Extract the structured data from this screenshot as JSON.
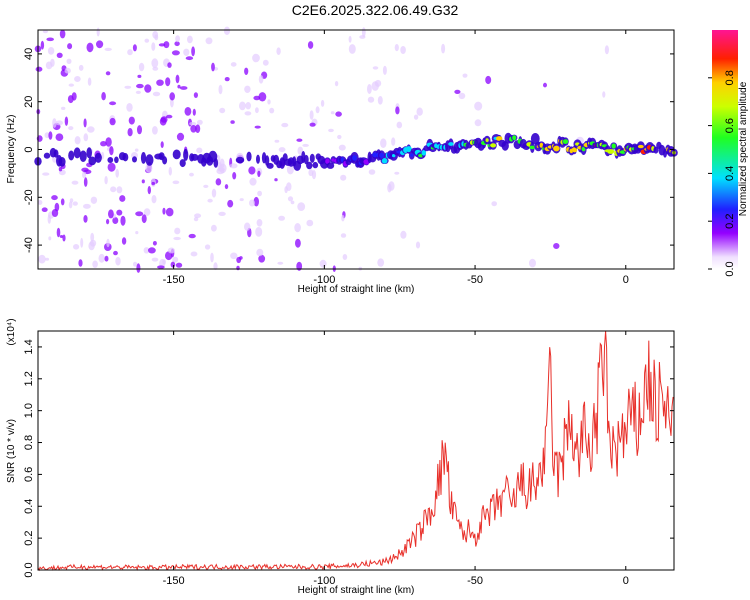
{
  "title": "C2E6.2025.322.06.49.G32",
  "colors": {
    "snr_line": "#e8302a",
    "spectrum_purple": "#8a00ff",
    "spectrum_light": "#e4ccff",
    "ridge_cyan": "#00d8ff",
    "ridge_green": "#33ee33",
    "ridge_red": "#ee1111"
  },
  "chart_data": [
    {
      "type": "heatmap",
      "title": "C2E6.2025.322.06.49.G32",
      "xlabel": "Height of straight line (km)",
      "ylabel": "Frequency (Hz)",
      "xlim": [
        -195,
        16
      ],
      "ylim": [
        -50,
        50
      ],
      "x_ticks": [
        -150,
        -100,
        -50,
        0
      ],
      "y_ticks": [
        -40,
        -20,
        0,
        20,
        40
      ],
      "colorbar": {
        "label": "Normalized spectral amplitude",
        "range": [
          0,
          1
        ],
        "ticks": [
          "0.0",
          "0.2",
          "0.4",
          "0.6",
          "0.8"
        ],
        "colormap": "rainbow-pink"
      },
      "ridge": {
        "x": [
          -195,
          -150,
          -120,
          -100,
          -85,
          -75,
          -65,
          -55,
          -45,
          -35,
          -25,
          -15,
          -5,
          5,
          15
        ],
        "freq_hz": [
          -3,
          -4,
          -5,
          -5,
          -4,
          -2,
          0,
          2,
          3,
          3,
          2,
          1,
          0,
          0,
          0
        ],
        "amplitude": [
          0.15,
          0.2,
          0.3,
          0.3,
          0.35,
          0.45,
          0.55,
          0.6,
          0.7,
          0.8,
          0.75,
          0.8,
          0.85,
          0.9,
          0.85
        ]
      }
    },
    {
      "type": "line",
      "xlabel": "Height of straight line (km)",
      "ylabel": "SNR (10 * v/v)",
      "y_multiplier": "(x10⁴)",
      "xlim": [
        -195,
        16
      ],
      "ylim": [
        0,
        1.5
      ],
      "x_ticks": [
        -150,
        -100,
        -50,
        0
      ],
      "y_ticks": [
        "0.0",
        "0.2",
        "0.4",
        "0.6",
        "0.8",
        "1.0",
        "1.2",
        "1.4"
      ],
      "series": [
        {
          "x": [
            -195,
            -180,
            -160,
            -140,
            -120,
            -100,
            -90,
            -80,
            -75,
            -70,
            -65,
            -62,
            -60,
            -58,
            -56,
            -54,
            -52,
            -50,
            -48,
            -45,
            -42,
            -40,
            -38,
            -35,
            -32,
            -30,
            -28,
            -26,
            -25,
            -24,
            -22,
            -20,
            -18,
            -16,
            -14,
            -12,
            -10,
            -8,
            -7,
            -6,
            -4,
            -2,
            0,
            2,
            4,
            6,
            8,
            10,
            12,
            14,
            16
          ],
          "y": [
            0.01,
            0.02,
            0.015,
            0.02,
            0.02,
            0.02,
            0.03,
            0.05,
            0.1,
            0.2,
            0.35,
            0.55,
            0.75,
            0.4,
            0.3,
            0.22,
            0.25,
            0.2,
            0.3,
            0.35,
            0.42,
            0.5,
            0.38,
            0.55,
            0.5,
            0.55,
            0.62,
            0.8,
            1.3,
            0.65,
            0.6,
            0.8,
            0.95,
            0.7,
            0.85,
            0.75,
            0.9,
            1.2,
            1.5,
            0.9,
            0.75,
            0.8,
            0.85,
            0.95,
            0.9,
            1.1,
            1.2,
            1.0,
            1.05,
            0.95,
            0.9
          ]
        }
      ]
    }
  ]
}
